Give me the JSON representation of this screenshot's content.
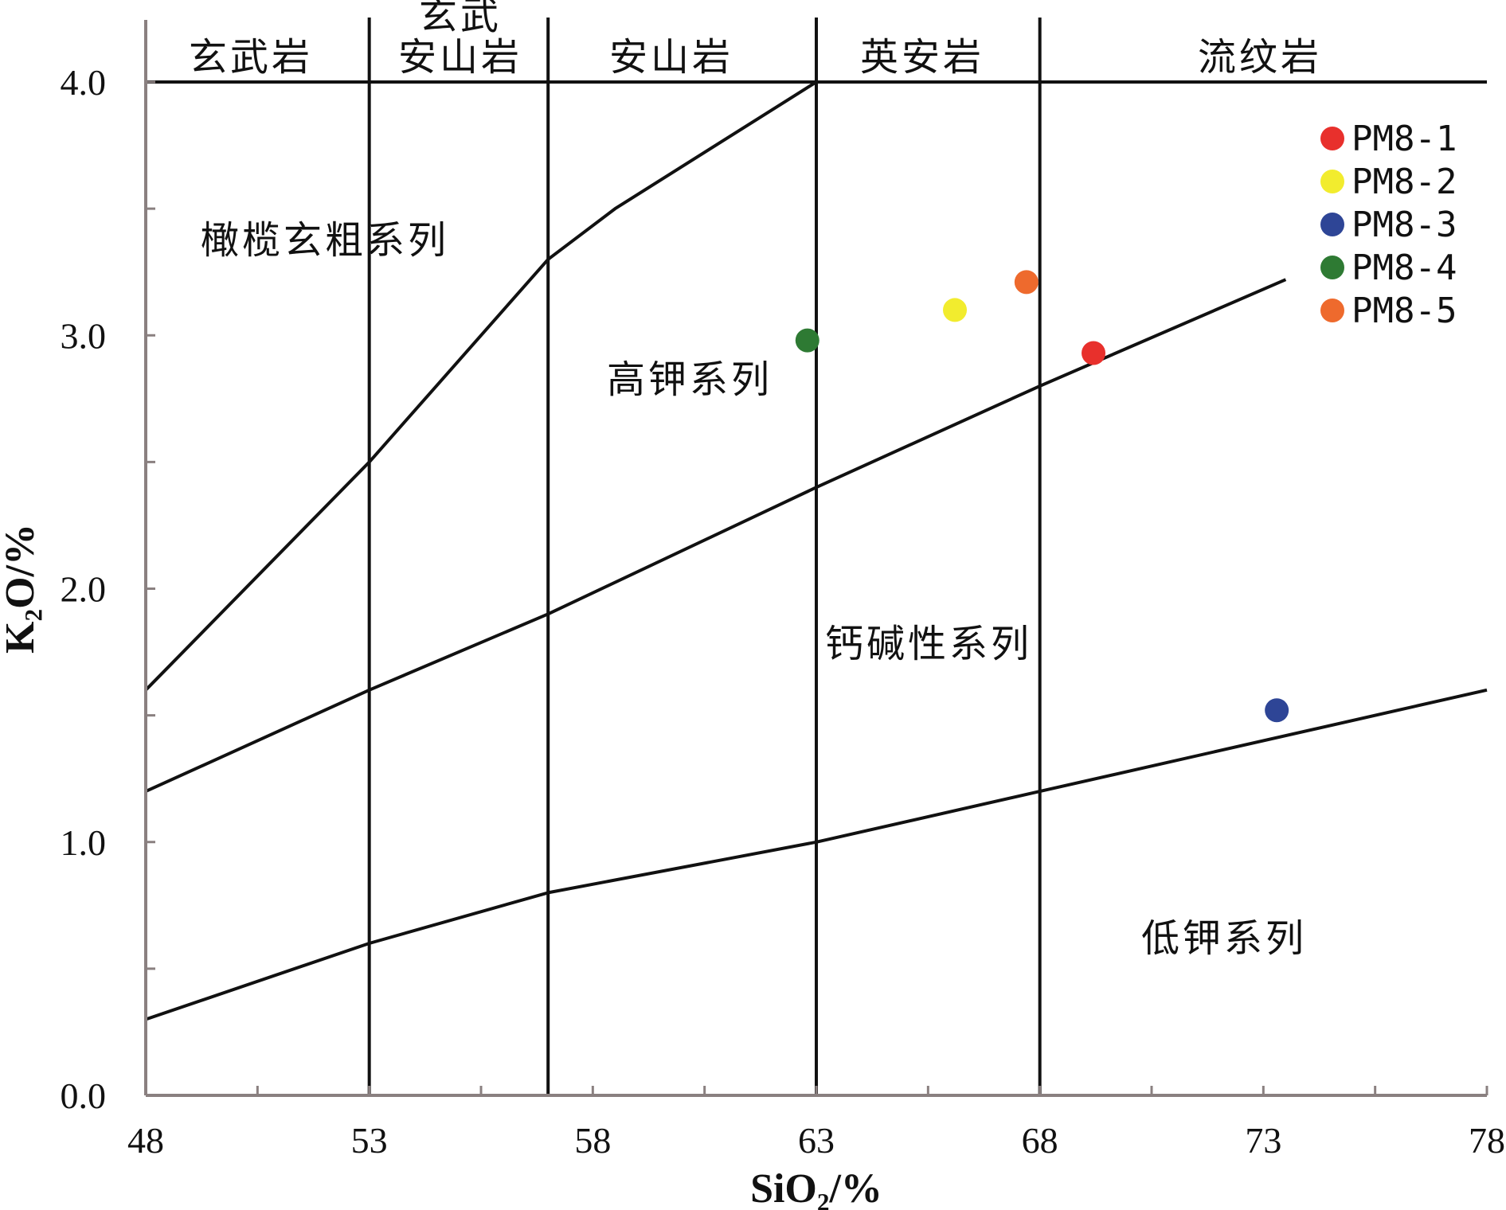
{
  "chart_data": {
    "type": "scatter",
    "title": "",
    "xlabel": "SiO₂/%",
    "ylabel": "K₂O/%",
    "xlim": [
      48,
      78
    ],
    "ylim": [
      0,
      4
    ],
    "x_ticks": [
      48,
      53,
      58,
      63,
      68,
      73,
      78
    ],
    "y_ticks": [
      "0.0",
      "1.0",
      "2.0",
      "3.0",
      "4.0"
    ],
    "legend_position": "top-right",
    "rock_types": [
      {
        "label": "玄武岩",
        "x_range": [
          48,
          53
        ]
      },
      {
        "label": "玄武安山岩",
        "x_range": [
          53,
          57
        ]
      },
      {
        "label": "安山岩",
        "x_range": [
          57,
          63
        ]
      },
      {
        "label": "英安岩",
        "x_range": [
          63,
          68
        ]
      },
      {
        "label": "流纹岩",
        "x_range": [
          68,
          78
        ]
      }
    ],
    "series_regions": [
      "橄榄玄粗系列",
      "高钾系列",
      "钙碱性系列",
      "低钾系列"
    ],
    "boundary_lines": [
      {
        "x": [
          48,
          53,
          54.5,
          56,
          57,
          58.5,
          63
        ],
        "y": [
          1.6,
          2.5,
          2.8,
          3.1,
          3.3,
          3.5,
          4.0
        ]
      },
      {
        "x": [
          48,
          53,
          57,
          63,
          68,
          73.5
        ],
        "y": [
          1.2,
          1.6,
          1.9,
          2.4,
          2.8,
          3.22
        ]
      },
      {
        "x": [
          48,
          53,
          57,
          63,
          68,
          78
        ],
        "y": [
          0.3,
          0.6,
          0.8,
          1.0,
          1.2,
          1.6
        ]
      }
    ],
    "series": [
      {
        "name": "PM8-1",
        "color": "#e8302c",
        "x": [
          69.2
        ],
        "y": [
          2.93
        ]
      },
      {
        "name": "PM8-2",
        "color": "#f2ec2e",
        "x": [
          66.1
        ],
        "y": [
          3.1
        ]
      },
      {
        "name": "PM8-3",
        "color": "#2e4596",
        "x": [
          73.3
        ],
        "y": [
          1.52
        ]
      },
      {
        "name": "PM8-4",
        "color": "#2e7a33",
        "x": [
          62.8
        ],
        "y": [
          2.98
        ]
      },
      {
        "name": "PM8-5",
        "color": "#ee6a2d",
        "x": [
          67.7
        ],
        "y": [
          3.21
        ]
      }
    ]
  }
}
